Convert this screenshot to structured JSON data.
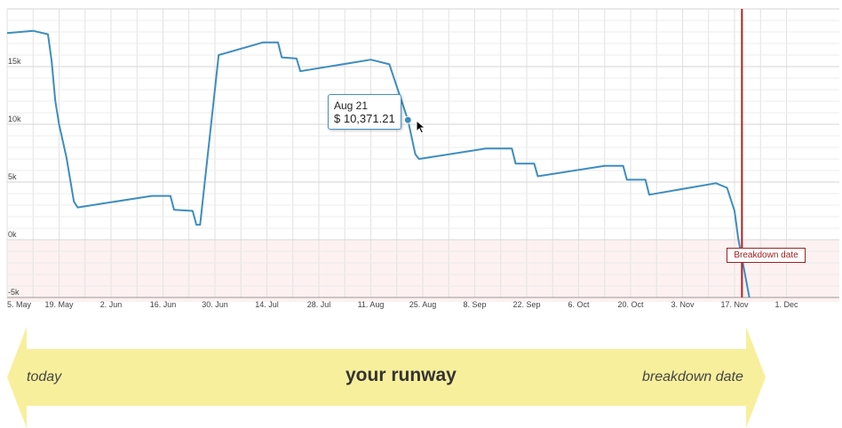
{
  "chart_data": {
    "type": "line",
    "title": "",
    "xlabel": "",
    "ylabel": "",
    "ylim": [
      -5000,
      20000
    ],
    "xlim": [
      "2025-05-05",
      "2025-12-06"
    ],
    "y_ticks": [
      {
        "value": -5000,
        "label": "-5k"
      },
      {
        "value": 0,
        "label": "0k"
      },
      {
        "value": 5000,
        "label": "5k"
      },
      {
        "value": 10000,
        "label": "10k"
      },
      {
        "value": 15000,
        "label": "15k"
      }
    ],
    "x_ticks": [
      {
        "date": "2025-05-05",
        "label": "5. May"
      },
      {
        "date": "2025-05-19",
        "label": "19. May"
      },
      {
        "date": "2025-06-02",
        "label": "2. Jun"
      },
      {
        "date": "2025-06-16",
        "label": "16. Jun"
      },
      {
        "date": "2025-06-30",
        "label": "30. Jun"
      },
      {
        "date": "2025-07-14",
        "label": "14. Jul"
      },
      {
        "date": "2025-07-28",
        "label": "28. Jul"
      },
      {
        "date": "2025-08-11",
        "label": "11. Aug"
      },
      {
        "date": "2025-08-25",
        "label": "25. Aug"
      },
      {
        "date": "2025-09-08",
        "label": "8. Sep"
      },
      {
        "date": "2025-09-22",
        "label": "22. Sep"
      },
      {
        "date": "2025-10-06",
        "label": "6. Oct"
      },
      {
        "date": "2025-10-20",
        "label": "20. Oct"
      },
      {
        "date": "2025-11-03",
        "label": "3. Nov"
      },
      {
        "date": "2025-11-17",
        "label": "17. Nov"
      },
      {
        "date": "2025-12-01",
        "label": "1. Dec"
      }
    ],
    "grid": true,
    "negative_zone": {
      "from": -5000,
      "to": 0,
      "color": "#fdf1f1"
    },
    "series": [
      {
        "color": "#3d8dc0",
        "points": [
          [
            "2025-05-05",
            17900
          ],
          [
            "2025-05-12",
            18100
          ],
          [
            "2025-05-16",
            17800
          ],
          [
            "2025-05-17",
            15500
          ],
          [
            "2025-05-18",
            12000
          ],
          [
            "2025-05-19",
            10000
          ],
          [
            "2025-05-21",
            7100
          ],
          [
            "2025-05-23",
            3300
          ],
          [
            "2025-05-24",
            2800
          ],
          [
            "2025-06-13",
            3800
          ],
          [
            "2025-06-18",
            3800
          ],
          [
            "2025-06-19",
            2600
          ],
          [
            "2025-06-24",
            2500
          ],
          [
            "2025-06-25",
            1300
          ],
          [
            "2025-06-26",
            1300
          ],
          [
            "2025-07-01",
            16000
          ],
          [
            "2025-07-13",
            17100
          ],
          [
            "2025-07-17",
            17100
          ],
          [
            "2025-07-18",
            15800
          ],
          [
            "2025-07-22",
            15700
          ],
          [
            "2025-07-23",
            14600
          ],
          [
            "2025-08-11",
            15600
          ],
          [
            "2025-08-16",
            15200
          ],
          [
            "2025-08-21",
            10371.21
          ],
          [
            "2025-08-23",
            7400
          ],
          [
            "2025-08-24",
            7000
          ],
          [
            "2025-09-11",
            7900
          ],
          [
            "2025-09-18",
            7900
          ],
          [
            "2025-09-19",
            6600
          ],
          [
            "2025-09-24",
            6600
          ],
          [
            "2025-09-25",
            5500
          ],
          [
            "2025-10-13",
            6400
          ],
          [
            "2025-10-18",
            6400
          ],
          [
            "2025-10-19",
            5200
          ],
          [
            "2025-10-24",
            5200
          ],
          [
            "2025-10-25",
            3900
          ],
          [
            "2025-11-12",
            4900
          ],
          [
            "2025-11-15",
            4500
          ],
          [
            "2025-11-17",
            2500
          ],
          [
            "2025-11-18",
            100
          ],
          [
            "2025-11-21",
            -5000
          ]
        ]
      }
    ],
    "tooltip": {
      "date_label": "Aug 21",
      "value_label": "$ 10,371.21",
      "x": "2025-08-21",
      "y": 10371.21
    },
    "breakdown": {
      "date": "2025-11-19",
      "label": "Breakdown date",
      "color": "#b22222"
    }
  },
  "runway": {
    "left_label": "today",
    "center_label": "your runway",
    "right_label": "breakdown date",
    "color": "#f8ef9c"
  }
}
